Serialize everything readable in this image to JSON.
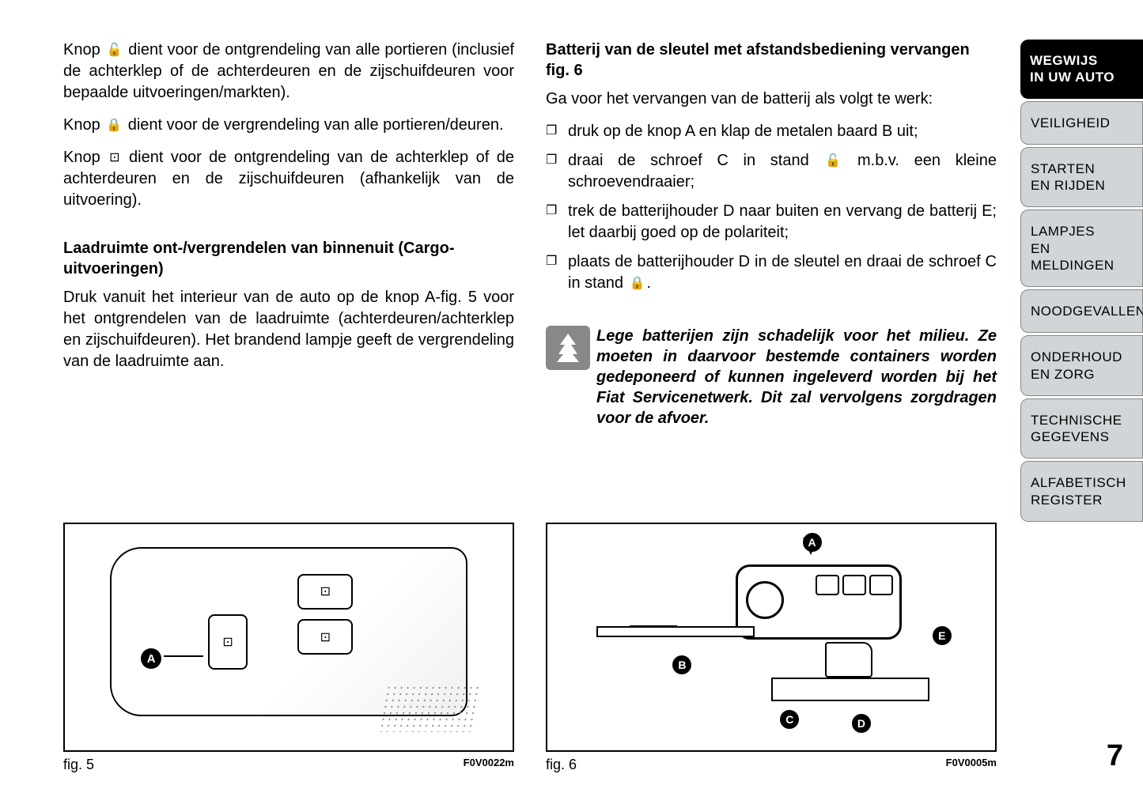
{
  "page_number": "7",
  "sidebar": {
    "tabs": [
      {
        "label": "WEGWIJS\nIN UW AUTO",
        "active": true
      },
      {
        "label": "VEILIGHEID",
        "active": false
      },
      {
        "label": "STARTEN\nEN RIJDEN",
        "active": false
      },
      {
        "label": "LAMPJES\nEN MELDINGEN",
        "active": false
      },
      {
        "label": "NOODGEVALLEN",
        "active": false
      },
      {
        "label": "ONDERHOUD\nEN ZORG",
        "active": false
      },
      {
        "label": "TECHNISCHE\nGEGEVENS",
        "active": false
      },
      {
        "label": "ALFABETISCH\nREGISTER",
        "active": false
      }
    ]
  },
  "left_col": {
    "p1a": "Knop ",
    "p1b": " dient voor de ontgrendeling van alle portieren (inclusief de achterklep of de achterdeuren en de zijschuifdeuren voor bepaalde uitvoeringen/markten).",
    "p2a": "Knop ",
    "p2b": " dient voor de vergrendeling van alle portieren/deuren.",
    "p3a": "Knop ",
    "p3b": " dient voor de ontgrendeling van de achterklep of de achterdeuren en de zijschuifdeuren (afhankelijk van de uitvoering).",
    "h1": "Laadruimte ont-/vergrendelen van binnenuit (Cargo-uitvoeringen)",
    "p4": "Druk vanuit het interieur van de auto op de knop A-fig. 5 voor het ontgrendelen van de laadruimte (achterdeuren/achterklep en zijschuifdeuren). Het brandend lampje geeft de vergrendeling van de laadruimte aan.",
    "fig_caption": "fig. 5",
    "fig_code": "F0V0022m",
    "fig_label_a": "A"
  },
  "right_col": {
    "h1": "Batterij van de sleutel met afstandsbediening vervangen fig. 6",
    "p1": "Ga voor het vervangen van de batterij als volgt te werk:",
    "li1": "druk op de knop A en klap de metalen baard B uit;",
    "li2a": "draai de schroef C in stand ",
    "li2b": " m.b.v. een kleine schroevendraaier;",
    "li3": "trek de batterijhouder D naar buiten en vervang de batterij E; let daarbij goed op de polariteit;",
    "li4a": "plaats de batterijhouder D in de sleutel en draai de schroef C in stand ",
    "li4b": ".",
    "callout": "Lege batterijen zijn schadelijk voor het milieu. Ze moeten in daarvoor bestemde containers worden gedeponeerd of kunnen ingeleverd worden bij het Fiat Servicenetwerk. Dit zal vervolgens zorgdragen voor de afvoer.",
    "fig_caption": "fig. 6",
    "fig_code": "F0V0005m",
    "fig_labels": {
      "a": "A",
      "b": "B",
      "c": "C",
      "d": "D",
      "e": "E"
    }
  },
  "icons": {
    "unlock": "🔓",
    "lock": "🔒",
    "trunk": "⊡",
    "tree": "🌲"
  },
  "colors": {
    "tab_bg": "#d0d5d8",
    "tab_active_bg": "#000000",
    "tab_active_fg": "#ffffff",
    "callout_icon_bg": "#888888",
    "text": "#000000"
  }
}
